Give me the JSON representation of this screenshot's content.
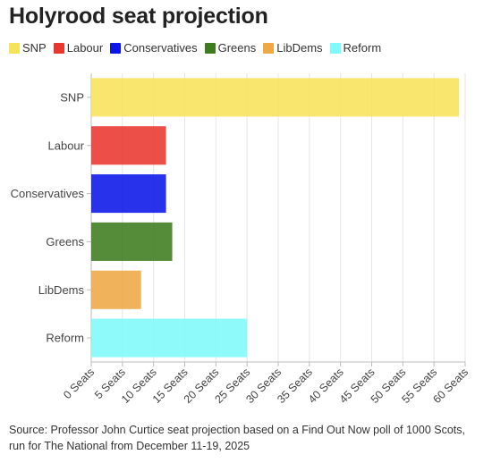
{
  "chart_data": {
    "type": "bar",
    "orientation": "horizontal",
    "title": "Holyrood seat projection",
    "categories": [
      "SNP",
      "Labour",
      "Conservatives",
      "Greens",
      "LibDems",
      "Reform"
    ],
    "values": [
      59,
      12,
      12,
      13,
      8,
      25
    ],
    "colors": [
      "#f7e35a",
      "#e8372f",
      "#0a16e8",
      "#3d7c1f",
      "#eea845",
      "#7ff9f9"
    ],
    "xlim": [
      0,
      60
    ],
    "xticks": [
      "0 Seats",
      "5 Seats",
      "10 Seats",
      "15 Seats",
      "20 Seats",
      "25 Seats",
      "30 Seats",
      "35 Seats",
      "40 Seats",
      "45 Seats",
      "50 Seats",
      "55 Seats",
      "60 Seats"
    ],
    "xtick_values": [
      0,
      5,
      10,
      15,
      20,
      25,
      30,
      35,
      40,
      45,
      50,
      55,
      60
    ],
    "legend": [
      "SNP",
      "Labour",
      "Conservatives",
      "Greens",
      "LibDems",
      "Reform"
    ],
    "legend_position": "top-left",
    "grid": "vertical",
    "source": "Source: Professor John Curtice seat projection based on a Find Out Now poll of 1000 Scots, run for The National from December 11-19, 2025"
  }
}
